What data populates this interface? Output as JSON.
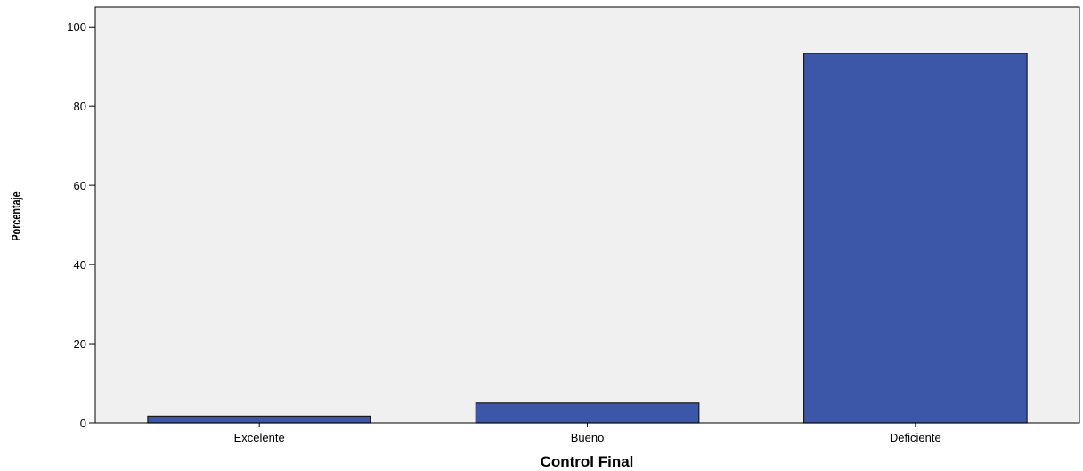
{
  "chart_data": {
    "type": "bar",
    "categories": [
      "Excelente",
      "Bueno",
      "Deficiente"
    ],
    "values": [
      1.7,
      5.0,
      93.3
    ],
    "xlabel": "Control Final",
    "ylabel": "Porcentaje",
    "ylim": [
      0,
      105
    ],
    "yticks": [
      "0",
      "20",
      "40",
      "60",
      "80",
      "100"
    ],
    "grid": false,
    "legend": "none",
    "colors": {
      "bar_fill": "#3d57a8",
      "bar_stroke": "#1a1a1a",
      "plot_background": "#f0f0f0",
      "frame": "#000000"
    }
  }
}
